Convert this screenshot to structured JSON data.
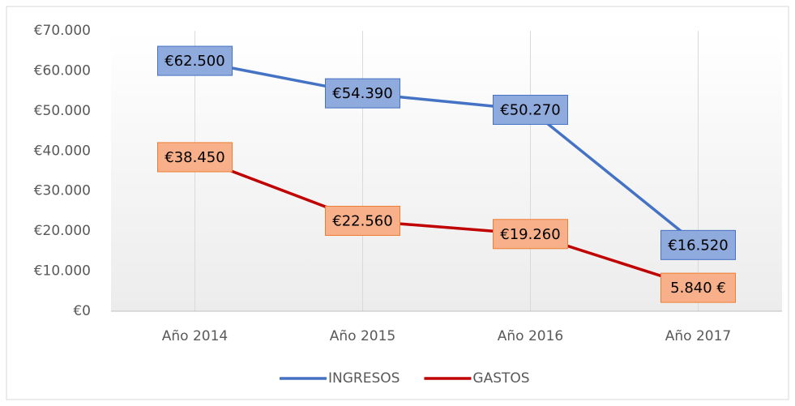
{
  "chart_data": {
    "type": "line",
    "categories": [
      "Año 2014",
      "Año 2015",
      "Año 2016",
      "Año 2017"
    ],
    "series": [
      {
        "name": "INGRESOS",
        "color": "#4472c4",
        "label_fill": "#8faadc",
        "values": [
          62500,
          54390,
          50270,
          16520
        ],
        "value_labels": [
          "€62.500",
          "€54.390",
          "€50.270",
          "€16.520"
        ]
      },
      {
        "name": "GASTOS",
        "color": "#c00000",
        "label_fill": "#f8b08a",
        "label_border": "#ed7d31",
        "values": [
          38450,
          22560,
          19260,
          5840
        ],
        "value_labels": [
          "€38.450",
          "€22.560",
          "€19.260",
          "5.840 €"
        ]
      }
    ],
    "ylim": [
      0,
      70000
    ],
    "yticks": [
      {
        "value": 0,
        "label": "€0"
      },
      {
        "value": 10000,
        "label": "€10.000"
      },
      {
        "value": 20000,
        "label": "€20.000"
      },
      {
        "value": 30000,
        "label": "€30.000"
      },
      {
        "value": 40000,
        "label": "€40.000"
      },
      {
        "value": 50000,
        "label": "€50.000"
      },
      {
        "value": 60000,
        "label": "€60.000"
      },
      {
        "value": 70000,
        "label": "€70.000"
      }
    ],
    "grid": true,
    "legend": "bottom"
  }
}
